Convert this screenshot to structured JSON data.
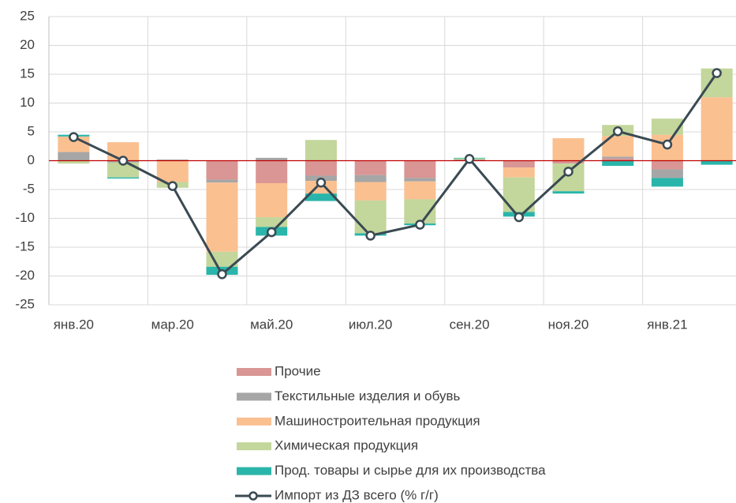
{
  "chart_data": {
    "type": "bar",
    "stacked": true,
    "categories": [
      "янв.20",
      null,
      "мар.20",
      null,
      "май.20",
      null,
      "июл.20",
      null,
      "сен.20",
      null,
      "ноя.20",
      null,
      "янв.21",
      null
    ],
    "series": [
      {
        "name": "Прочие",
        "color": "#d99694",
        "values": [
          0,
          0,
          0,
          -3.3,
          -3.9,
          -2.6,
          -2.5,
          -3.0,
          0,
          -1.2,
          -0.5,
          0.4,
          -1.5,
          0
        ]
      },
      {
        "name": "Текстильные  изделия и обувь",
        "color": "#a6a6a6",
        "values": [
          1.5,
          -0.3,
          0.2,
          -0.5,
          0.5,
          -0.9,
          -1.2,
          -0.6,
          0.2,
          0,
          0,
          0.3,
          -1.5,
          0
        ]
      },
      {
        "name": "Машиностроительная  продукция",
        "color": "#fac090",
        "values": [
          2.7,
          3.2,
          -3.7,
          -12,
          -5.9,
          -2.2,
          -3.2,
          -3.1,
          0,
          -1.7,
          3.9,
          3.6,
          4.5,
          11
        ]
      },
      {
        "name": "Химическая  продукция",
        "color": "#c3d69b",
        "values": [
          -0.5,
          -2.6,
          -1.0,
          -2.6,
          -1.7,
          3.6,
          -5.7,
          -4.2,
          0.2,
          -6,
          -4.8,
          1.9,
          2.8,
          5
        ]
      },
      {
        "name": "Прод. товары и сырье для их производства",
        "color": "#2ab5aa",
        "values": [
          0.3,
          -0.2,
          0,
          -1.4,
          -1.5,
          -1.3,
          -0.4,
          -0.3,
          0.1,
          -0.8,
          -0.4,
          -0.9,
          -1.5,
          -0.7
        ]
      },
      {
        "name": "Импорт из ДЗ всего (% г/г)",
        "color": "#3a4a53",
        "type": "line",
        "values": [
          4.1,
          0,
          -4.4,
          -19.7,
          -12.4,
          -3.8,
          -13.0,
          -11.1,
          0.3,
          -9.8,
          -1.9,
          5.1,
          2.8,
          15.2
        ]
      }
    ],
    "ylim": [
      -25,
      25
    ],
    "yticks": [
      -25,
      -20,
      -15,
      -10,
      -5,
      0,
      5,
      10,
      15,
      20,
      25
    ],
    "grid": true,
    "legend_position": "bottom"
  }
}
